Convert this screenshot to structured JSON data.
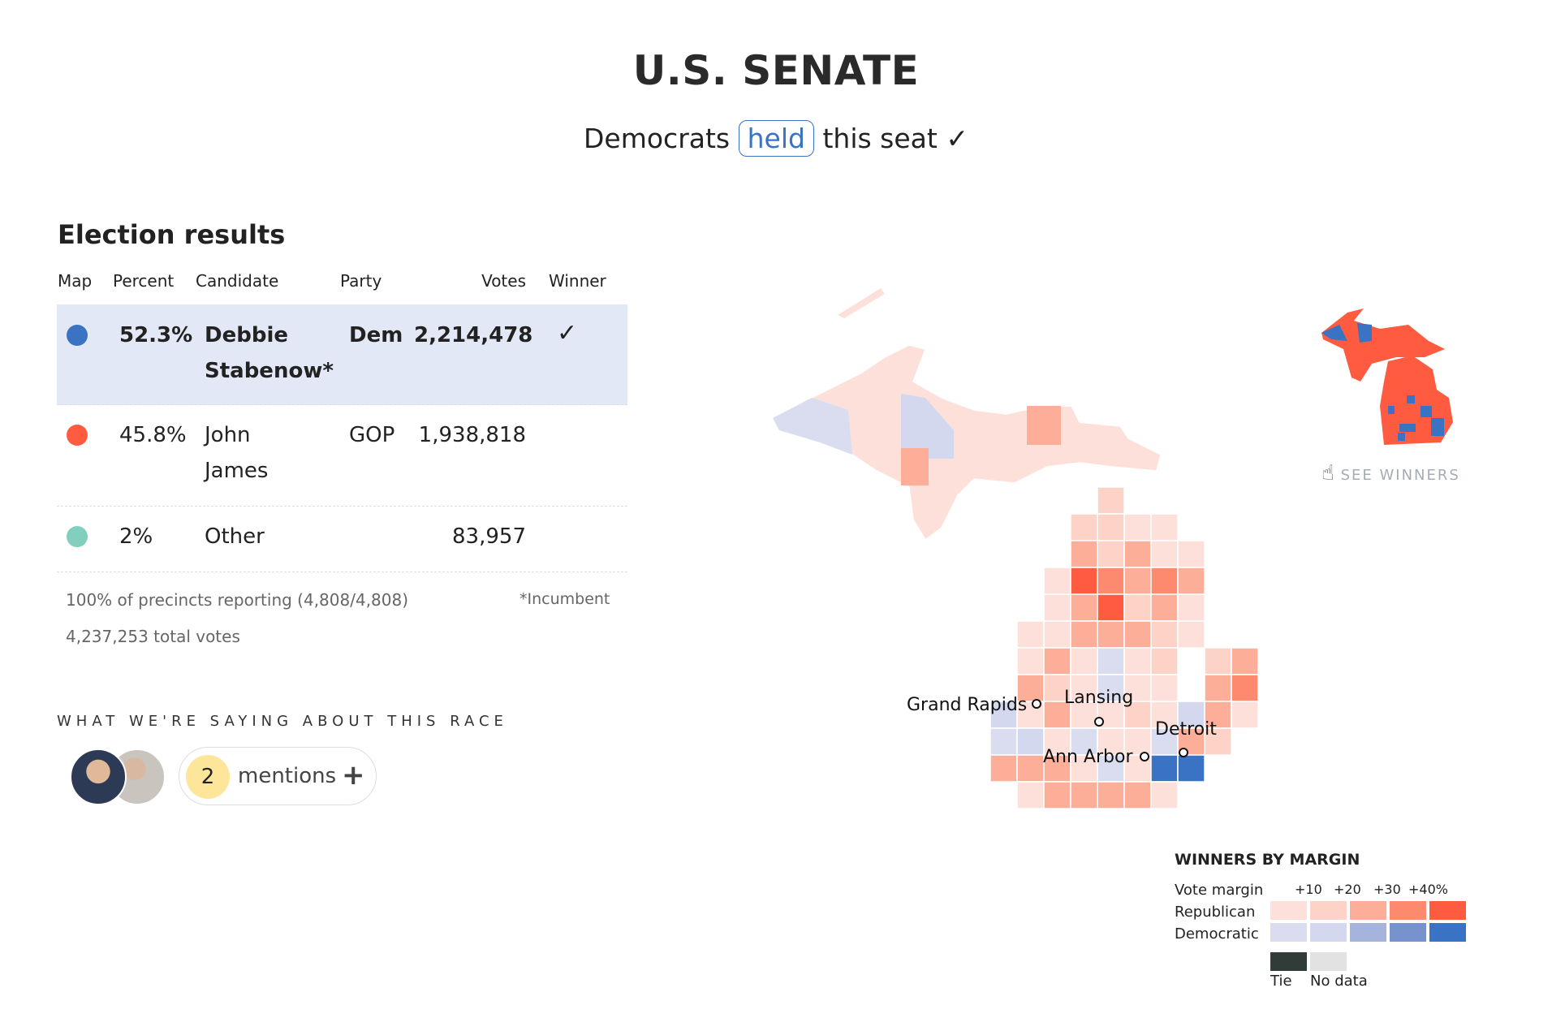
{
  "header": {
    "title": "U.S. SENATE",
    "subtitle_pre": "Democrats",
    "subtitle_badge": "held",
    "subtitle_post": "this seat",
    "check": "✓"
  },
  "results": {
    "title": "Election results",
    "columns": [
      "Map",
      "Percent",
      "Candidate",
      "Party",
      "Votes",
      "Winner"
    ],
    "rows": [
      {
        "color": "#3a72c4",
        "percent": "52.3%",
        "name1": "Debbie",
        "name2": "Stabenow*",
        "party": "Dem",
        "votes": "2,214,478",
        "winner": "✓",
        "highlight": true
      },
      {
        "color": "#fe5b40",
        "percent": "45.8%",
        "name1": "John",
        "name2": "James",
        "party": "GOP",
        "votes": "1,938,818",
        "winner": ""
      },
      {
        "color": "#82cfbd",
        "percent": "2%",
        "name1": "Other",
        "name2": "",
        "party": "",
        "votes": "83,957",
        "winner": ""
      }
    ],
    "reporting": "100% of precincts reporting (4,808/4,808)",
    "incumbent_note": "*Incumbent",
    "total_votes": "4,237,253 total votes"
  },
  "saying": {
    "title": "WHAT WE'RE SAYING ABOUT THIS RACE",
    "count": "2",
    "label": "mentions",
    "plus": "+"
  },
  "map": {
    "cities": [
      "Grand Rapids",
      "Lansing",
      "Detroit",
      "Ann Arbor"
    ],
    "county_margin_rows": [
      "....b.....",
      "...bbaa...",
      "...cbcaa..",
      "..aedcdc..",
      "..acebca..",
      ".aacccba..",
      ".acaAab.bc",
      ".cbaAaa.cd",
      "BacaabaBca",
      "ABaAaaAcb.",
      "cccaAaEE..",
      ".acccca..."
    ],
    "see_winners": "SEE WINNERS"
  },
  "legend": {
    "title": "WINNERS BY MARGIN",
    "vote_margin": "Vote margin",
    "ticks": [
      "+10",
      "+20",
      "+30",
      "+40%"
    ],
    "republican": "Republican",
    "democratic": "Democratic",
    "rep_colors": [
      "#fde0d9",
      "#fdd3c8",
      "#fcae98",
      "#fd8a6e",
      "#fe5b40"
    ],
    "dem_colors": [
      "#d9ddef",
      "#d3d8ef",
      "#a4b4dc",
      "#7693ce",
      "#3a72c4"
    ],
    "tie": "Tie",
    "no_data": "No data",
    "tie_color": "#313b38",
    "no_data_color": "#e2e2e2"
  }
}
